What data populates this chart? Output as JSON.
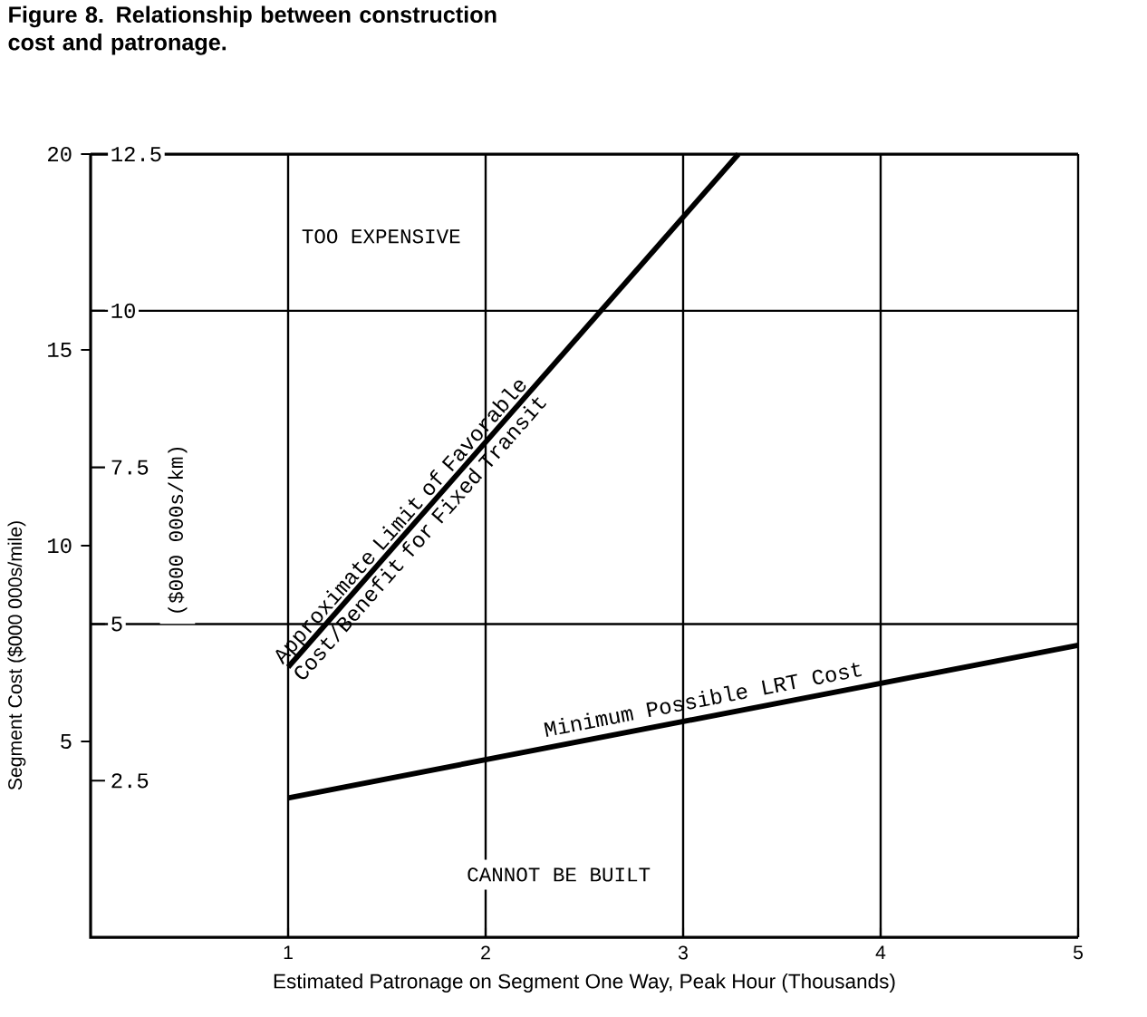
{
  "chart_data": {
    "type": "line",
    "title": "Figure 8.  Relationship between construction cost and patronage.",
    "xlabel": "Estimated Patronage on Segment One Way, Peak Hour (Thousands)",
    "ylabel": "Segment Cost ($000 000s/mile)",
    "y2label": "($000 000s/km)",
    "xlim": [
      0,
      5
    ],
    "xticks": [
      1,
      2,
      3,
      4,
      5
    ],
    "ylim": [
      0,
      20
    ],
    "yticks": [
      5,
      10,
      15,
      20
    ],
    "y2lim": [
      0,
      12.5
    ],
    "y2ticks": [
      2.5,
      5,
      7.5,
      10,
      12.5
    ],
    "grid": "x",
    "ref_lines": [
      {
        "axis": "y2",
        "value": 5
      },
      {
        "axis": "y2",
        "value": 10
      }
    ],
    "series": [
      {
        "name": "Approximate Limit of Favorable Cost/Benefit for Fixed Transit",
        "color": "#000000",
        "x": [
          1,
          3.28
        ],
        "values": [
          6.9,
          20
        ]
      },
      {
        "name": "Minimum Possible LRT Cost",
        "color": "#000000",
        "x": [
          1,
          5
        ],
        "values": [
          3.56,
          7.46
        ]
      }
    ],
    "annotations": [
      "TOO EXPENSIVE",
      "CANNOT BE BUILT"
    ]
  }
}
